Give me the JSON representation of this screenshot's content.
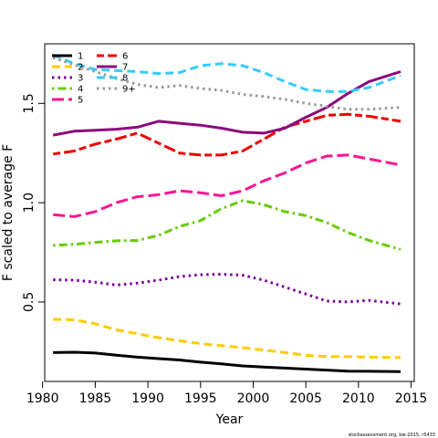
{
  "chart_data": {
    "type": "line",
    "title": "",
    "xlabel": "Year",
    "ylabel": "F scaled to average F",
    "xlim": [
      1980.2,
      2015.3
    ],
    "ylim": [
      0.1,
      1.8
    ],
    "xticks": [
      1980,
      1985,
      1990,
      1995,
      2000,
      2005,
      2010,
      2015
    ],
    "yticks": [
      0.5,
      1.0,
      1.5
    ],
    "ytick_labels": [
      "0.5",
      "1.0",
      "1.5"
    ],
    "grid": false,
    "legend_position": "top-left",
    "credit": "stockassessment.org, bw-2015, r5433",
    "series": [
      {
        "name": "1",
        "color": "#000000",
        "dash": "solid",
        "x": [
          1981,
          1983,
          1985,
          1987,
          1989,
          1991,
          1993,
          1995,
          1997,
          1999,
          2001,
          2003,
          2005,
          2007,
          2009,
          2011,
          2014
        ],
        "y": [
          0.245,
          0.247,
          0.243,
          0.232,
          0.222,
          0.215,
          0.208,
          0.197,
          0.188,
          0.178,
          0.172,
          0.167,
          0.162,
          0.157,
          0.152,
          0.151,
          0.149
        ]
      },
      {
        "name": "2",
        "color": "#FFCC00",
        "dash": "dashed",
        "x": [
          1981,
          1983,
          1985,
          1987,
          1989,
          1991,
          1993,
          1995,
          1997,
          1999,
          2001,
          2003,
          2005,
          2007,
          2009,
          2011,
          2014
        ],
        "y": [
          0.413,
          0.41,
          0.39,
          0.36,
          0.34,
          0.32,
          0.305,
          0.29,
          0.28,
          0.27,
          0.258,
          0.245,
          0.232,
          0.225,
          0.225,
          0.222,
          0.22
        ]
      },
      {
        "name": "3",
        "color": "#7B0099",
        "dash": "dotted",
        "x": [
          1981,
          1983,
          1985,
          1987,
          1989,
          1991,
          1993,
          1995,
          1997,
          1999,
          2001,
          2003,
          2005,
          2007,
          2009,
          2011,
          2014
        ],
        "y": [
          0.612,
          0.61,
          0.6,
          0.585,
          0.595,
          0.61,
          0.628,
          0.637,
          0.64,
          0.635,
          0.61,
          0.575,
          0.54,
          0.505,
          0.5,
          0.508,
          0.49
        ]
      },
      {
        "name": "4",
        "color": "#66CC00",
        "dash": "dashdot",
        "x": [
          1981,
          1983,
          1985,
          1987,
          1989,
          1991,
          1993,
          1995,
          1997,
          1999,
          2001,
          2003,
          2005,
          2007,
          2009,
          2011,
          2014
        ],
        "y": [
          0.785,
          0.79,
          0.8,
          0.808,
          0.81,
          0.835,
          0.88,
          0.91,
          0.97,
          1.01,
          0.99,
          0.955,
          0.935,
          0.9,
          0.85,
          0.81,
          0.765
        ]
      },
      {
        "name": "5",
        "color": "#FF1493",
        "dash": "longdash",
        "x": [
          1981,
          1983,
          1985,
          1987,
          1989,
          1991,
          1993,
          1995,
          1997,
          1999,
          2001,
          2003,
          2005,
          2007,
          2009,
          2011,
          2014
        ],
        "y": [
          0.94,
          0.93,
          0.955,
          1.0,
          1.03,
          1.04,
          1.06,
          1.05,
          1.035,
          1.06,
          1.11,
          1.15,
          1.2,
          1.235,
          1.24,
          1.22,
          1.19
        ]
      },
      {
        "name": "6",
        "color": "#EE0000",
        "dash": "twodash",
        "x": [
          1981,
          1983,
          1985,
          1987,
          1989,
          1991,
          1993,
          1995,
          1997,
          1999,
          2001,
          2003,
          2005,
          2007,
          2009,
          2011,
          2014
        ],
        "y": [
          1.245,
          1.26,
          1.295,
          1.32,
          1.35,
          1.3,
          1.25,
          1.24,
          1.24,
          1.26,
          1.32,
          1.38,
          1.41,
          1.44,
          1.445,
          1.435,
          1.41
        ]
      },
      {
        "name": "7",
        "color": "#8B0A7B",
        "dash": "solid",
        "x": [
          1981,
          1983,
          1985,
          1987,
          1989,
          1991,
          1993,
          1995,
          1997,
          1999,
          2001,
          2003,
          2005,
          2007,
          2009,
          2011,
          2014
        ],
        "y": [
          1.34,
          1.36,
          1.365,
          1.37,
          1.38,
          1.41,
          1.4,
          1.39,
          1.375,
          1.355,
          1.35,
          1.375,
          1.43,
          1.48,
          1.55,
          1.61,
          1.66
        ]
      },
      {
        "name": "8",
        "color": "#33CCFF",
        "dash": "dashed",
        "x": [
          1981,
          1983,
          1985,
          1987,
          1989,
          1991,
          1993,
          1995,
          1997,
          1999,
          2001,
          2003,
          2005,
          2007,
          2009,
          2011,
          2014
        ],
        "y": [
          1.745,
          1.7,
          1.67,
          1.665,
          1.66,
          1.65,
          1.655,
          1.69,
          1.7,
          1.69,
          1.655,
          1.61,
          1.57,
          1.56,
          1.56,
          1.58,
          1.64
        ]
      },
      {
        "name": "9+",
        "color": "#999999",
        "dash": "dotted",
        "x": [
          1981,
          1983,
          1985,
          1987,
          1989,
          1991,
          1993,
          1995,
          1997,
          1999,
          2001,
          2003,
          2005,
          2007,
          2009,
          2011,
          2014
        ],
        "y": [
          1.73,
          1.695,
          1.66,
          1.625,
          1.595,
          1.58,
          1.59,
          1.575,
          1.565,
          1.545,
          1.535,
          1.52,
          1.5,
          1.485,
          1.47,
          1.47,
          1.48
        ]
      }
    ]
  }
}
